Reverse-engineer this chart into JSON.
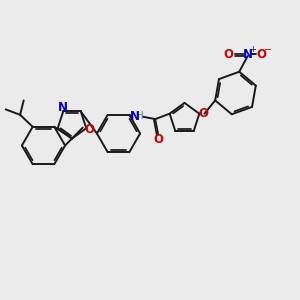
{
  "bg_color": "#ebebeb",
  "bond_color": "#1a1a1a",
  "bond_lw": 1.4,
  "dbo": 0.055,
  "figsize": [
    3.0,
    3.0
  ],
  "dpi": 100,
  "N_color": "#0000cc",
  "O_color": "#cc0000",
  "NH_color": "#4a9090",
  "xlim": [
    0,
    10
  ],
  "ylim": [
    0,
    10
  ]
}
